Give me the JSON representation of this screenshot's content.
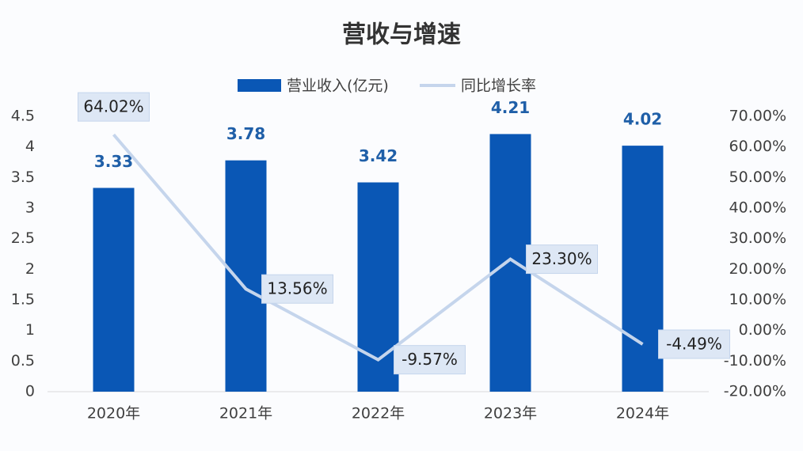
{
  "chart_data": {
    "type": "bar-line",
    "title": "营收与增速",
    "categories": [
      "2020年",
      "2021年",
      "2022年",
      "2023年",
      "2024年"
    ],
    "series": [
      {
        "name": "营业收入(亿元)",
        "type": "bar",
        "color": "#0a57b5",
        "values": [
          3.33,
          3.78,
          3.42,
          4.21,
          4.02
        ]
      },
      {
        "name": "同比增长率",
        "type": "line",
        "axis": "y2",
        "color": "#c5d5ec",
        "values": [
          64.02,
          13.56,
          -9.57,
          23.3,
          -4.49
        ],
        "value_labels": [
          "64.02%",
          "13.56%",
          "-9.57%",
          "23.30%",
          "-4.49%"
        ]
      }
    ],
    "ylim": [
      0,
      4.5
    ],
    "yticks": [
      0,
      0.5,
      1,
      1.5,
      2,
      2.5,
      3,
      3.5,
      4,
      4.5
    ],
    "y2lim": [
      -20,
      70
    ],
    "y2ticks": [
      {
        "value": -20,
        "label": "-20.00%"
      },
      {
        "value": -10,
        "label": "-10.00%"
      },
      {
        "value": 0,
        "label": "0.00%"
      },
      {
        "value": 10,
        "label": "10.00%"
      },
      {
        "value": 20,
        "label": "20.00%"
      },
      {
        "value": 30,
        "label": "30.00%"
      },
      {
        "value": 40,
        "label": "40.00%"
      },
      {
        "value": 50,
        "label": "50.00%"
      },
      {
        "value": 60,
        "label": "60.00%"
      },
      {
        "value": 70,
        "label": "70.00%"
      }
    ],
    "grid": false
  }
}
